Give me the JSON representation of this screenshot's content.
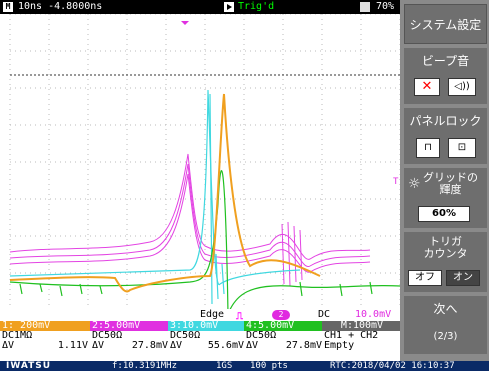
{
  "topbar": {
    "mode_icon": "M",
    "time_scale": "10ns -4.8000ns",
    "trig_status": "Trig'd",
    "memory_pct": "70%"
  },
  "trigger_bar": {
    "type": "Edge",
    "source": "2",
    "coupling": "DC",
    "level": "10.0mV"
  },
  "channels": {
    "header": [
      "1: 200mV",
      "2:5.00mV",
      "3:10.0mV",
      "4:5.00mV",
      "M:100mV"
    ],
    "coupling": [
      "DC1MΩ",
      "DC50Ω",
      "DC50Ω",
      "DC50Ω",
      "CH1 + CH2"
    ],
    "dv": [
      {
        "label": "ΔV",
        "value": "1.11V"
      },
      {
        "label": "ΔV",
        "value": "27.8mV"
      },
      {
        "label": "ΔV",
        "value": "55.6mV"
      },
      {
        "label": "ΔV",
        "value": "27.8mV"
      },
      {
        "label": "",
        "value": "Empty"
      }
    ],
    "colors": [
      "#f0a020",
      "#e030e0",
      "#40d8e0",
      "#20c020",
      "#666666"
    ]
  },
  "footer": {
    "brand": "IWATSU",
    "freq": "f:10.3191MHz",
    "rate": "1GS",
    "pts": "100 pts",
    "rtc": "RTC:2018/04/02 16:10:37"
  },
  "menu": {
    "title": "システム設定",
    "beep": {
      "title": "ビープ音",
      "off_icon": "speaker-mute-icon",
      "on_icon": "speaker-on-icon"
    },
    "panel_lock": {
      "title": "パネルロック",
      "unlock_icon": "unlock-icon",
      "lock_icon": "lock-icon"
    },
    "grid_brightness": {
      "title": "グリッドの\n輝度",
      "value": "60%"
    },
    "trig_counter": {
      "title": "トリガ\nカウンタ",
      "off": "オフ",
      "on": "オン"
    },
    "next": {
      "title": "次へ",
      "page": "(2/3)"
    }
  }
}
